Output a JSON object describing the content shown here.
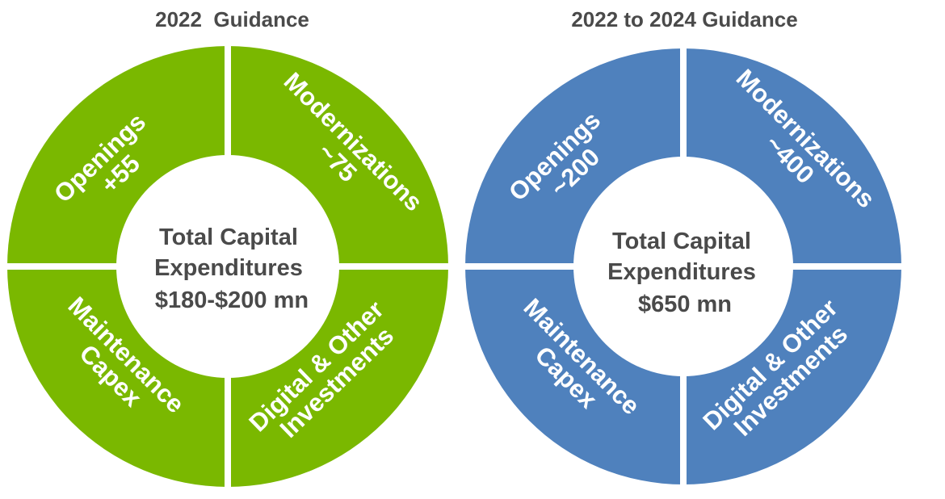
{
  "diagrams": [
    {
      "heading": "2022  Guidance",
      "color": "#7ab800",
      "center": [
        "Total Capital",
        "Expenditures",
        "$180-$200 mn"
      ],
      "segments": {
        "openings": [
          "Openings",
          "+55"
        ],
        "modernizations": [
          "Modernizations",
          "~75"
        ],
        "maintenance": [
          "Maintenance",
          "Capex"
        ],
        "digital": [
          "Digital & Other",
          "Investments"
        ]
      }
    },
    {
      "heading": "2022 to 2024 Guidance",
      "color": "#4f81bd",
      "center": [
        "Total Capital",
        "Expenditures",
        "$650 mn"
      ],
      "segments": {
        "openings": [
          "Openings",
          "~200"
        ],
        "modernizations": [
          "Modernizations",
          "~400"
        ],
        "maintenance": [
          "Maintenance",
          "Capex"
        ],
        "digital": [
          "Digital & Other",
          "Investments"
        ]
      }
    }
  ]
}
